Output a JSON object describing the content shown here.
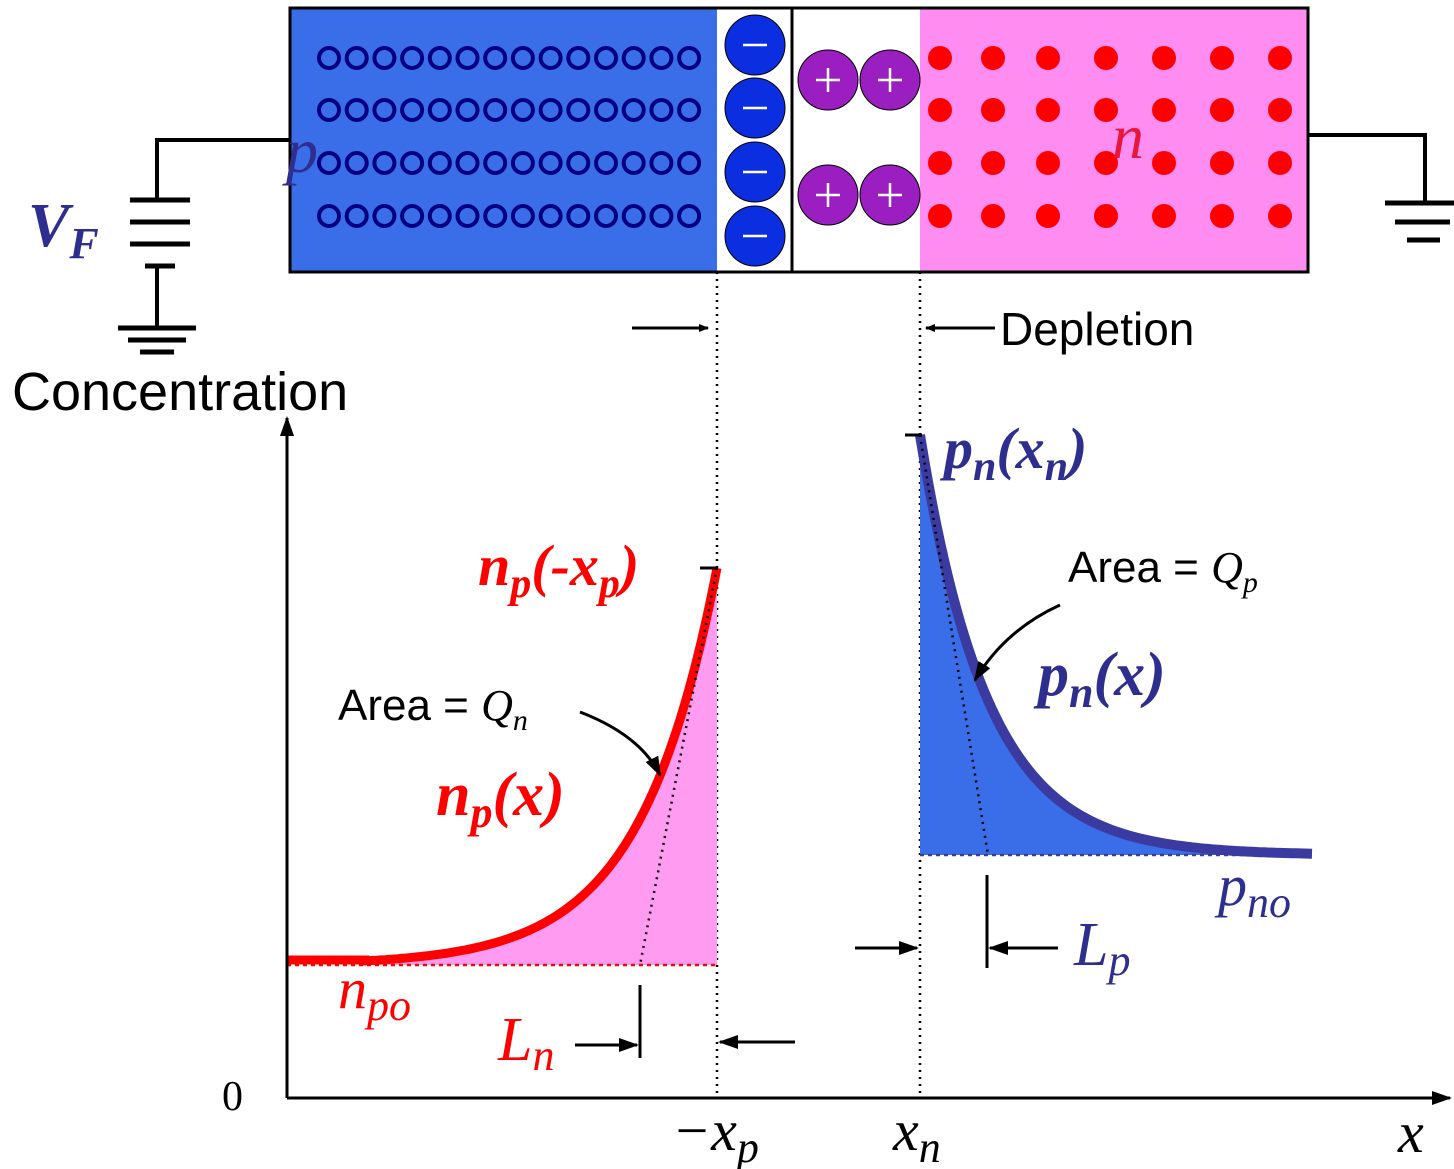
{
  "circuit": {
    "source": [
      "V",
      "F"
    ]
  },
  "junction": {
    "p_label": "p",
    "n_label": "n",
    "depletion_label": "Depletion"
  },
  "axes": {
    "y_title": "Concentration",
    "origin": "0",
    "x_title": "x",
    "minus_x_p": [
      "−x",
      "p"
    ],
    "x_n": [
      "x",
      "n"
    ]
  },
  "p_side": {
    "edge_label": [
      "n",
      "p",
      "(-x",
      "p",
      ")"
    ],
    "curve_label": [
      "n",
      "p",
      "(x)"
    ],
    "area_label": [
      "Area = ",
      "Q",
      "n"
    ],
    "equilibrium_label": [
      "n",
      "po"
    ],
    "diffusion_length": [
      "L",
      "n"
    ]
  },
  "n_side": {
    "edge_label": [
      "p",
      "n",
      "(x",
      "n",
      ")"
    ],
    "curve_label": [
      "p",
      "n",
      "(x)"
    ],
    "area_label": [
      "Area = ",
      "Q",
      "p"
    ],
    "equilibrium_label": [
      "p",
      "no"
    ],
    "diffusion_length": [
      "L",
      "p"
    ]
  }
}
